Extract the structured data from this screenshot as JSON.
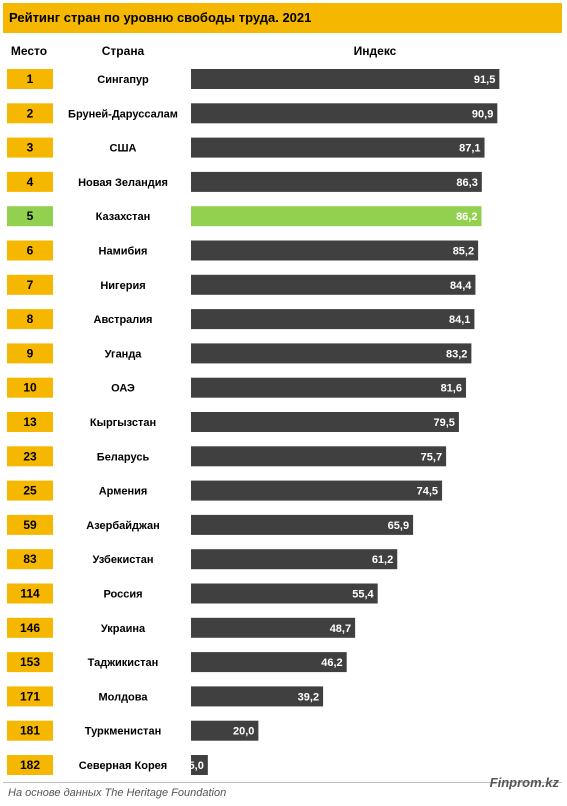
{
  "title": "Рейтинг стран по уровню свободы труда. 2021",
  "headers": {
    "rank": "Место",
    "country": "Страна",
    "index": "Индекс"
  },
  "source": "На основе данных The Heritage Foundation",
  "watermark": "Finprom.kz",
  "colors": {
    "title_bg": "#f5b700",
    "rank_bg": "#f5b700",
    "rank_highlight_bg": "#92d050",
    "bar": "#404040",
    "bar_highlight": "#92d050"
  },
  "chart_data": {
    "type": "bar",
    "orientation": "horizontal",
    "title": "Рейтинг стран по уровню свободы труда. 2021",
    "xlabel": "Индекс",
    "xlim": [
      0,
      100
    ],
    "highlight": "Казахстан",
    "rows": [
      {
        "rank": "1",
        "country": "Сингапур",
        "value": 91.5,
        "label": "91,5"
      },
      {
        "rank": "2",
        "country": "Бруней-Даруссалам",
        "value": 90.9,
        "label": "90,9"
      },
      {
        "rank": "3",
        "country": "США",
        "value": 87.1,
        "label": "87,1"
      },
      {
        "rank": "4",
        "country": "Новая Зеландия",
        "value": 86.3,
        "label": "86,3"
      },
      {
        "rank": "5",
        "country": "Казахстан",
        "value": 86.2,
        "label": "86,2"
      },
      {
        "rank": "6",
        "country": "Намибия",
        "value": 85.2,
        "label": "85,2"
      },
      {
        "rank": "7",
        "country": "Нигерия",
        "value": 84.4,
        "label": "84,4"
      },
      {
        "rank": "8",
        "country": "Австралия",
        "value": 84.1,
        "label": "84,1"
      },
      {
        "rank": "9",
        "country": "Уганда",
        "value": 83.2,
        "label": "83,2"
      },
      {
        "rank": "10",
        "country": "ОАЭ",
        "value": 81.6,
        "label": "81,6"
      },
      {
        "rank": "13",
        "country": "Кыргызстан",
        "value": 79.5,
        "label": "79,5"
      },
      {
        "rank": "23",
        "country": "Беларусь",
        "value": 75.7,
        "label": "75,7"
      },
      {
        "rank": "25",
        "country": "Армения",
        "value": 74.5,
        "label": "74,5"
      },
      {
        "rank": "59",
        "country": "Азербайджан",
        "value": 65.9,
        "label": "65,9"
      },
      {
        "rank": "83",
        "country": "Узбекистан",
        "value": 61.2,
        "label": "61,2"
      },
      {
        "rank": "114",
        "country": "Россия",
        "value": 55.4,
        "label": "55,4"
      },
      {
        "rank": "146",
        "country": "Украина",
        "value": 48.7,
        "label": "48,7"
      },
      {
        "rank": "153",
        "country": "Таджикистан",
        "value": 46.2,
        "label": "46,2"
      },
      {
        "rank": "171",
        "country": "Молдова",
        "value": 39.2,
        "label": "39,2"
      },
      {
        "rank": "181",
        "country": "Туркменистан",
        "value": 20.0,
        "label": "20,0"
      },
      {
        "rank": "182",
        "country": "Северная Корея",
        "value": 5.0,
        "label": "5,0"
      }
    ]
  }
}
